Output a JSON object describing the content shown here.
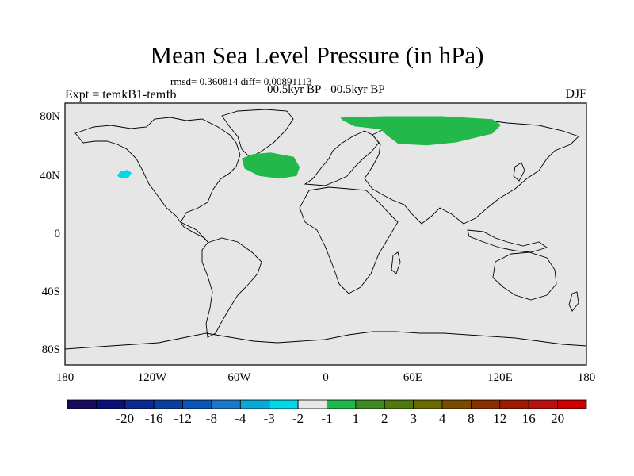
{
  "title": "Mean Sea Level Pressure (in hPa)",
  "stats": "rmsd= 0.360814 diff= 0.00891113",
  "experiment": "Expt = temkB1-temfb",
  "period": "00.5kyr BP - 00.5kyr BP",
  "season": "DJF",
  "lat_labels": [
    "80N",
    "40N",
    "0",
    "40S",
    "80S"
  ],
  "lon_labels": [
    "180",
    "120W",
    "60W",
    "0",
    "60E",
    "120E",
    "180"
  ],
  "colorbar": {
    "labels": [
      "-20",
      "-16",
      "-12",
      "-8",
      "-4",
      "-3",
      "-2",
      "-1",
      "1",
      "2",
      "3",
      "4",
      "8",
      "12",
      "16",
      "20"
    ],
    "colors": [
      "#1a0a5e",
      "#0a0f7a",
      "#0a2a8f",
      "#0a3fa0",
      "#0a55b5",
      "#1a78c8",
      "#0aa8d8",
      "#00d8e8",
      "#e6e6e6",
      "#1fb84a",
      "#3e8a22",
      "#4f7a10",
      "#6b6a00",
      "#7a4a00",
      "#8a3000",
      "#a01a00",
      "#b81010",
      "#cc0000"
    ]
  },
  "anomalies": [
    {
      "name": "north-atlantic",
      "lon": -40,
      "lat": 44,
      "value": 1,
      "color": "#22b84a"
    },
    {
      "name": "siberia",
      "lon": 70,
      "lat": 68,
      "value": 1,
      "color": "#22b84a"
    },
    {
      "name": "north-pacific",
      "lon": -140,
      "lat": 40,
      "value": -1,
      "color": "#00d8e8"
    }
  ],
  "colors": {
    "land_ocean_fill": "#e6e6e6",
    "coast": "#000000"
  }
}
